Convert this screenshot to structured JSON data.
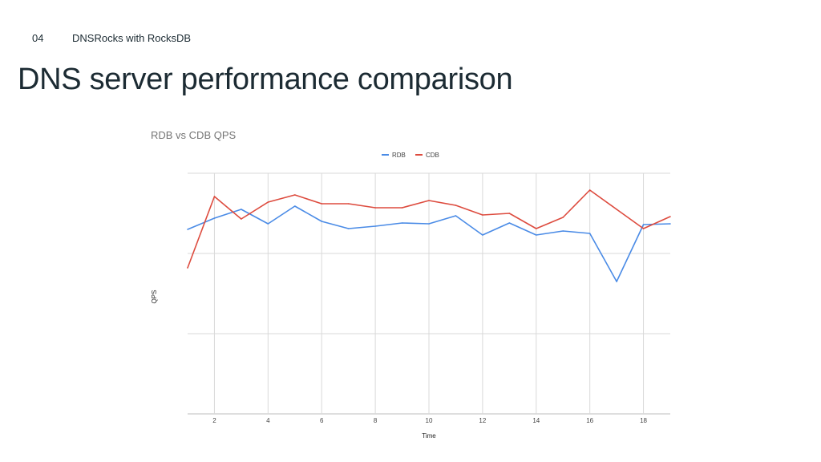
{
  "header": {
    "section_number": "04",
    "section_title": "DNSRocks with RocksDB"
  },
  "slide": {
    "title": "DNS server performance comparison"
  },
  "colors": {
    "rdb": "#4a8be6",
    "cdb": "#dd4b3e",
    "grid": "#d9d9d9",
    "text": "#1c2b33"
  },
  "chart_data": {
    "type": "line",
    "title": "RDB vs CDB QPS",
    "xlabel": "Time",
    "ylabel": "QPS",
    "xlim": [
      1,
      19
    ],
    "ylim": [
      0,
      3
    ],
    "x_ticks": [
      "2",
      "4",
      "6",
      "8",
      "10",
      "12",
      "14",
      "16",
      "18"
    ],
    "grid": true,
    "legend_position": "top",
    "x": [
      1,
      2,
      3,
      4,
      5,
      6,
      7,
      8,
      9,
      10,
      11,
      12,
      13,
      14,
      15,
      16,
      17,
      18,
      19
    ],
    "series": [
      {
        "name": "RDB",
        "color": "#4a8be6",
        "values": [
          2.3,
          2.44,
          2.55,
          2.37,
          2.59,
          2.4,
          2.31,
          2.34,
          2.38,
          2.37,
          2.47,
          2.23,
          2.38,
          2.23,
          2.28,
          2.25,
          1.65,
          2.36,
          2.37
        ]
      },
      {
        "name": "CDB",
        "color": "#dd4b3e",
        "values": [
          1.82,
          2.71,
          2.43,
          2.64,
          2.73,
          2.62,
          2.62,
          2.57,
          2.57,
          2.66,
          2.6,
          2.48,
          2.5,
          2.31,
          2.45,
          2.79,
          2.55,
          2.31,
          2.46
        ]
      }
    ]
  }
}
